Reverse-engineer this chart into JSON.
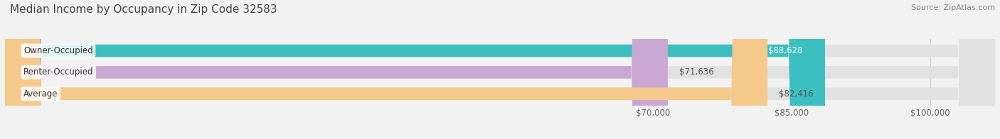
{
  "title": "Median Income by Occupancy in Zip Code 32583",
  "source": "Source: ZipAtlas.com",
  "categories": [
    "Owner-Occupied",
    "Renter-Occupied",
    "Average"
  ],
  "values": [
    88628,
    71636,
    82416
  ],
  "bar_colors": [
    "#3bbfc0",
    "#c9a8d4",
    "#f5c98a"
  ],
  "value_labels": [
    "$88,628",
    "$71,636",
    "$82,416"
  ],
  "value_inside": [
    true,
    false,
    false
  ],
  "x_min": 0,
  "x_max": 107000,
  "x_ticks": [
    70000,
    85000,
    100000
  ],
  "x_tick_labels": [
    "$70,000",
    "$85,000",
    "$100,000"
  ],
  "bar_height": 0.58,
  "background_color": "#f2f2f2",
  "bar_bg_color": "#e2e2e2",
  "grid_color": "#cccccc",
  "title_color": "#444444",
  "source_color": "#888888",
  "label_color": "#444444",
  "value_inside_color": "#ffffff",
  "value_outside_color": "#555555"
}
